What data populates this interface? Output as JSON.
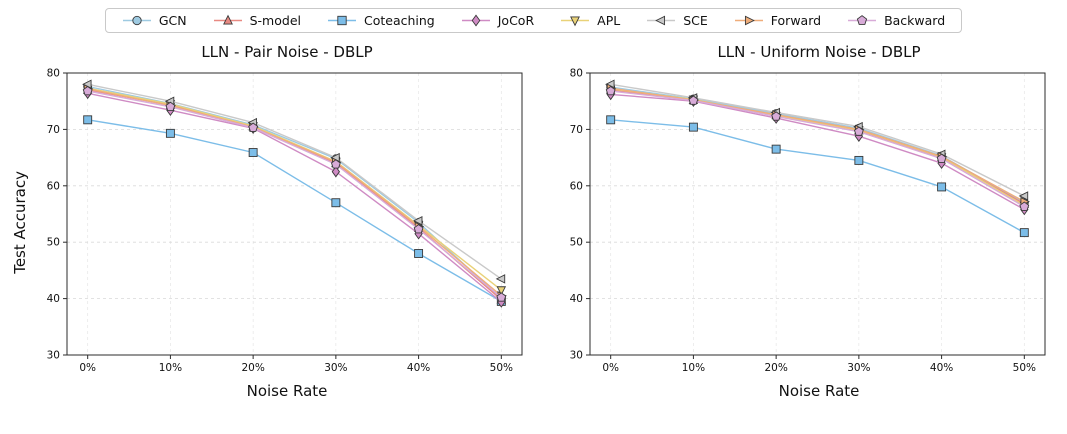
{
  "legend": {
    "items": [
      {
        "label": "GCN",
        "marker": "circle",
        "color": "#9ecae1"
      },
      {
        "label": "S-model",
        "marker": "triangle-up",
        "color": "#e88982"
      },
      {
        "label": "Coteaching",
        "marker": "square",
        "color": "#7cbde8"
      },
      {
        "label": "JoCoR",
        "marker": "diamond",
        "color": "#cf8bc4"
      },
      {
        "label": "APL",
        "marker": "triangle-down",
        "color": "#e9d278"
      },
      {
        "label": "SCE",
        "marker": "triangle-left",
        "color": "#c9c9c9"
      },
      {
        "label": "Forward",
        "marker": "triangle-right",
        "color": "#efad7a"
      },
      {
        "label": "Backward",
        "marker": "pentagon",
        "color": "#d8abd8"
      }
    ]
  },
  "chart_data": [
    {
      "type": "line",
      "title": "LLN - Pair Noise - DBLP",
      "xlabel": "Noise Rate",
      "ylabel": "Test Accuracy",
      "x_ticklabels": [
        "0%",
        "10%",
        "20%",
        "30%",
        "40%",
        "50%"
      ],
      "ylim": [
        30,
        80
      ],
      "yticks": [
        30,
        40,
        50,
        60,
        70,
        80
      ],
      "grid": "dashed",
      "legend_position": "top-outside",
      "series": [
        {
          "name": "GCN",
          "values": [
            77.6,
            74.6,
            70.8,
            64.8,
            53.5,
            40.0
          ]
        },
        {
          "name": "S-model",
          "values": [
            77.0,
            74.3,
            70.5,
            64.0,
            52.5,
            39.8
          ]
        },
        {
          "name": "Coteaching",
          "values": [
            71.7,
            69.3,
            65.9,
            57.0,
            48.0,
            39.5
          ]
        },
        {
          "name": "JoCoR",
          "values": [
            76.4,
            73.4,
            70.2,
            62.5,
            51.5,
            39.4
          ]
        },
        {
          "name": "APL",
          "values": [
            77.3,
            74.5,
            70.6,
            64.3,
            53.0,
            41.5
          ]
        },
        {
          "name": "SCE",
          "values": [
            78.0,
            75.0,
            71.2,
            65.0,
            53.8,
            43.5
          ]
        },
        {
          "name": "Forward",
          "values": [
            77.2,
            74.2,
            70.4,
            64.2,
            52.8,
            40.5
          ]
        },
        {
          "name": "Backward",
          "values": [
            76.8,
            74.0,
            70.3,
            63.8,
            52.3,
            40.2
          ]
        }
      ]
    },
    {
      "type": "line",
      "title": "LLN - Uniform Noise - DBLP",
      "xlabel": "Noise Rate",
      "ylabel": "",
      "x_ticklabels": [
        "0%",
        "10%",
        "20%",
        "30%",
        "40%",
        "50%"
      ],
      "ylim": [
        30,
        80
      ],
      "yticks": [
        30,
        40,
        50,
        60,
        70,
        80
      ],
      "grid": "dashed",
      "legend_position": "top-outside",
      "series": [
        {
          "name": "GCN",
          "values": [
            77.5,
            75.4,
            72.8,
            70.2,
            65.3,
            57.0
          ]
        },
        {
          "name": "S-model",
          "values": [
            77.0,
            75.2,
            72.5,
            69.8,
            65.0,
            56.8
          ]
        },
        {
          "name": "Coteaching",
          "values": [
            71.7,
            70.4,
            66.5,
            64.5,
            59.8,
            51.7
          ]
        },
        {
          "name": "JoCoR",
          "values": [
            76.2,
            75.0,
            72.0,
            68.8,
            64.0,
            55.8
          ]
        },
        {
          "name": "APL",
          "values": [
            77.2,
            75.3,
            72.4,
            69.9,
            65.1,
            56.5
          ]
        },
        {
          "name": "SCE",
          "values": [
            78.0,
            75.6,
            73.0,
            70.5,
            65.6,
            58.2
          ]
        },
        {
          "name": "Forward",
          "values": [
            77.3,
            75.2,
            72.6,
            70.0,
            65.2,
            57.2
          ]
        },
        {
          "name": "Backward",
          "values": [
            76.8,
            75.1,
            72.3,
            69.6,
            64.8,
            56.3
          ]
        }
      ]
    }
  ]
}
